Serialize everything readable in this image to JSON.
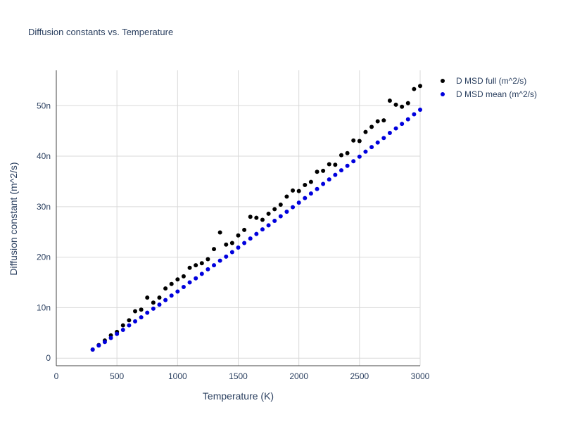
{
  "chart_data": {
    "type": "scatter",
    "title": "Diffusion constants vs. Temperature",
    "xlabel": "Temperature (K)",
    "ylabel": "Diffusion constant (m^2/s)",
    "xlim": [
      0,
      3000
    ],
    "ylim": [
      -1.5,
      57
    ],
    "x_ticks": [
      0,
      500,
      1000,
      1500,
      2000,
      2500,
      3000
    ],
    "y_ticks": [
      0,
      10,
      20,
      30,
      40,
      50
    ],
    "x_tick_labels": [
      "0",
      "500",
      "1000",
      "1500",
      "2000",
      "2500",
      "3000"
    ],
    "y_tick_labels": [
      "0",
      "10n",
      "20n",
      "30n",
      "40n",
      "50n"
    ],
    "y_unit_note": "values in units of 1e-9 (n)",
    "grid": true,
    "legend_position": "top-right",
    "x": [
      300,
      350,
      400,
      450,
      500,
      550,
      600,
      650,
      700,
      750,
      800,
      850,
      900,
      950,
      1000,
      1050,
      1100,
      1150,
      1200,
      1250,
      1300,
      1350,
      1400,
      1450,
      1500,
      1550,
      1600,
      1650,
      1700,
      1750,
      1800,
      1850,
      1900,
      1950,
      2000,
      2050,
      2100,
      2150,
      2200,
      2250,
      2300,
      2350,
      2400,
      2450,
      2500,
      2550,
      2600,
      2650,
      2700,
      2750,
      2800,
      2850,
      2900,
      2950,
      3000
    ],
    "series": [
      {
        "name": "D MSD full (m^2/s)",
        "color": "#000000",
        "values": [
          1.7,
          2.6,
          3.5,
          4.5,
          5.2,
          6.5,
          7.5,
          9.3,
          9.6,
          12.0,
          11.0,
          12.0,
          13.8,
          14.7,
          15.6,
          16.2,
          17.9,
          18.4,
          18.8,
          19.6,
          21.6,
          24.9,
          22.5,
          22.8,
          24.3,
          25.4,
          28.0,
          27.8,
          27.4,
          28.6,
          29.5,
          30.4,
          32.0,
          33.2,
          33.1,
          34.3,
          34.9,
          36.9,
          37.1,
          38.4,
          38.3,
          40.2,
          40.6,
          43.1,
          43.0,
          44.8,
          45.8,
          46.9,
          47.1,
          51.0,
          50.2,
          49.8,
          50.5,
          53.3,
          53.9
        ]
      },
      {
        "name": "D MSD mean (m^2/s)",
        "color": "#0000dd",
        "values": [
          1.7,
          2.5,
          3.2,
          4.0,
          4.8,
          5.6,
          6.5,
          7.3,
          8.1,
          9.0,
          9.8,
          10.6,
          11.5,
          12.4,
          13.2,
          14.1,
          15.0,
          15.8,
          16.7,
          17.6,
          18.4,
          19.3,
          20.1,
          21.0,
          21.9,
          22.8,
          23.7,
          24.6,
          25.5,
          26.3,
          27.2,
          28.1,
          29.0,
          29.9,
          30.8,
          31.7,
          32.6,
          33.5,
          34.5,
          35.4,
          36.3,
          37.2,
          38.1,
          39.0,
          39.9,
          40.9,
          41.8,
          42.7,
          43.6,
          44.6,
          45.5,
          46.4,
          47.3,
          48.3,
          49.2
        ]
      }
    ]
  }
}
